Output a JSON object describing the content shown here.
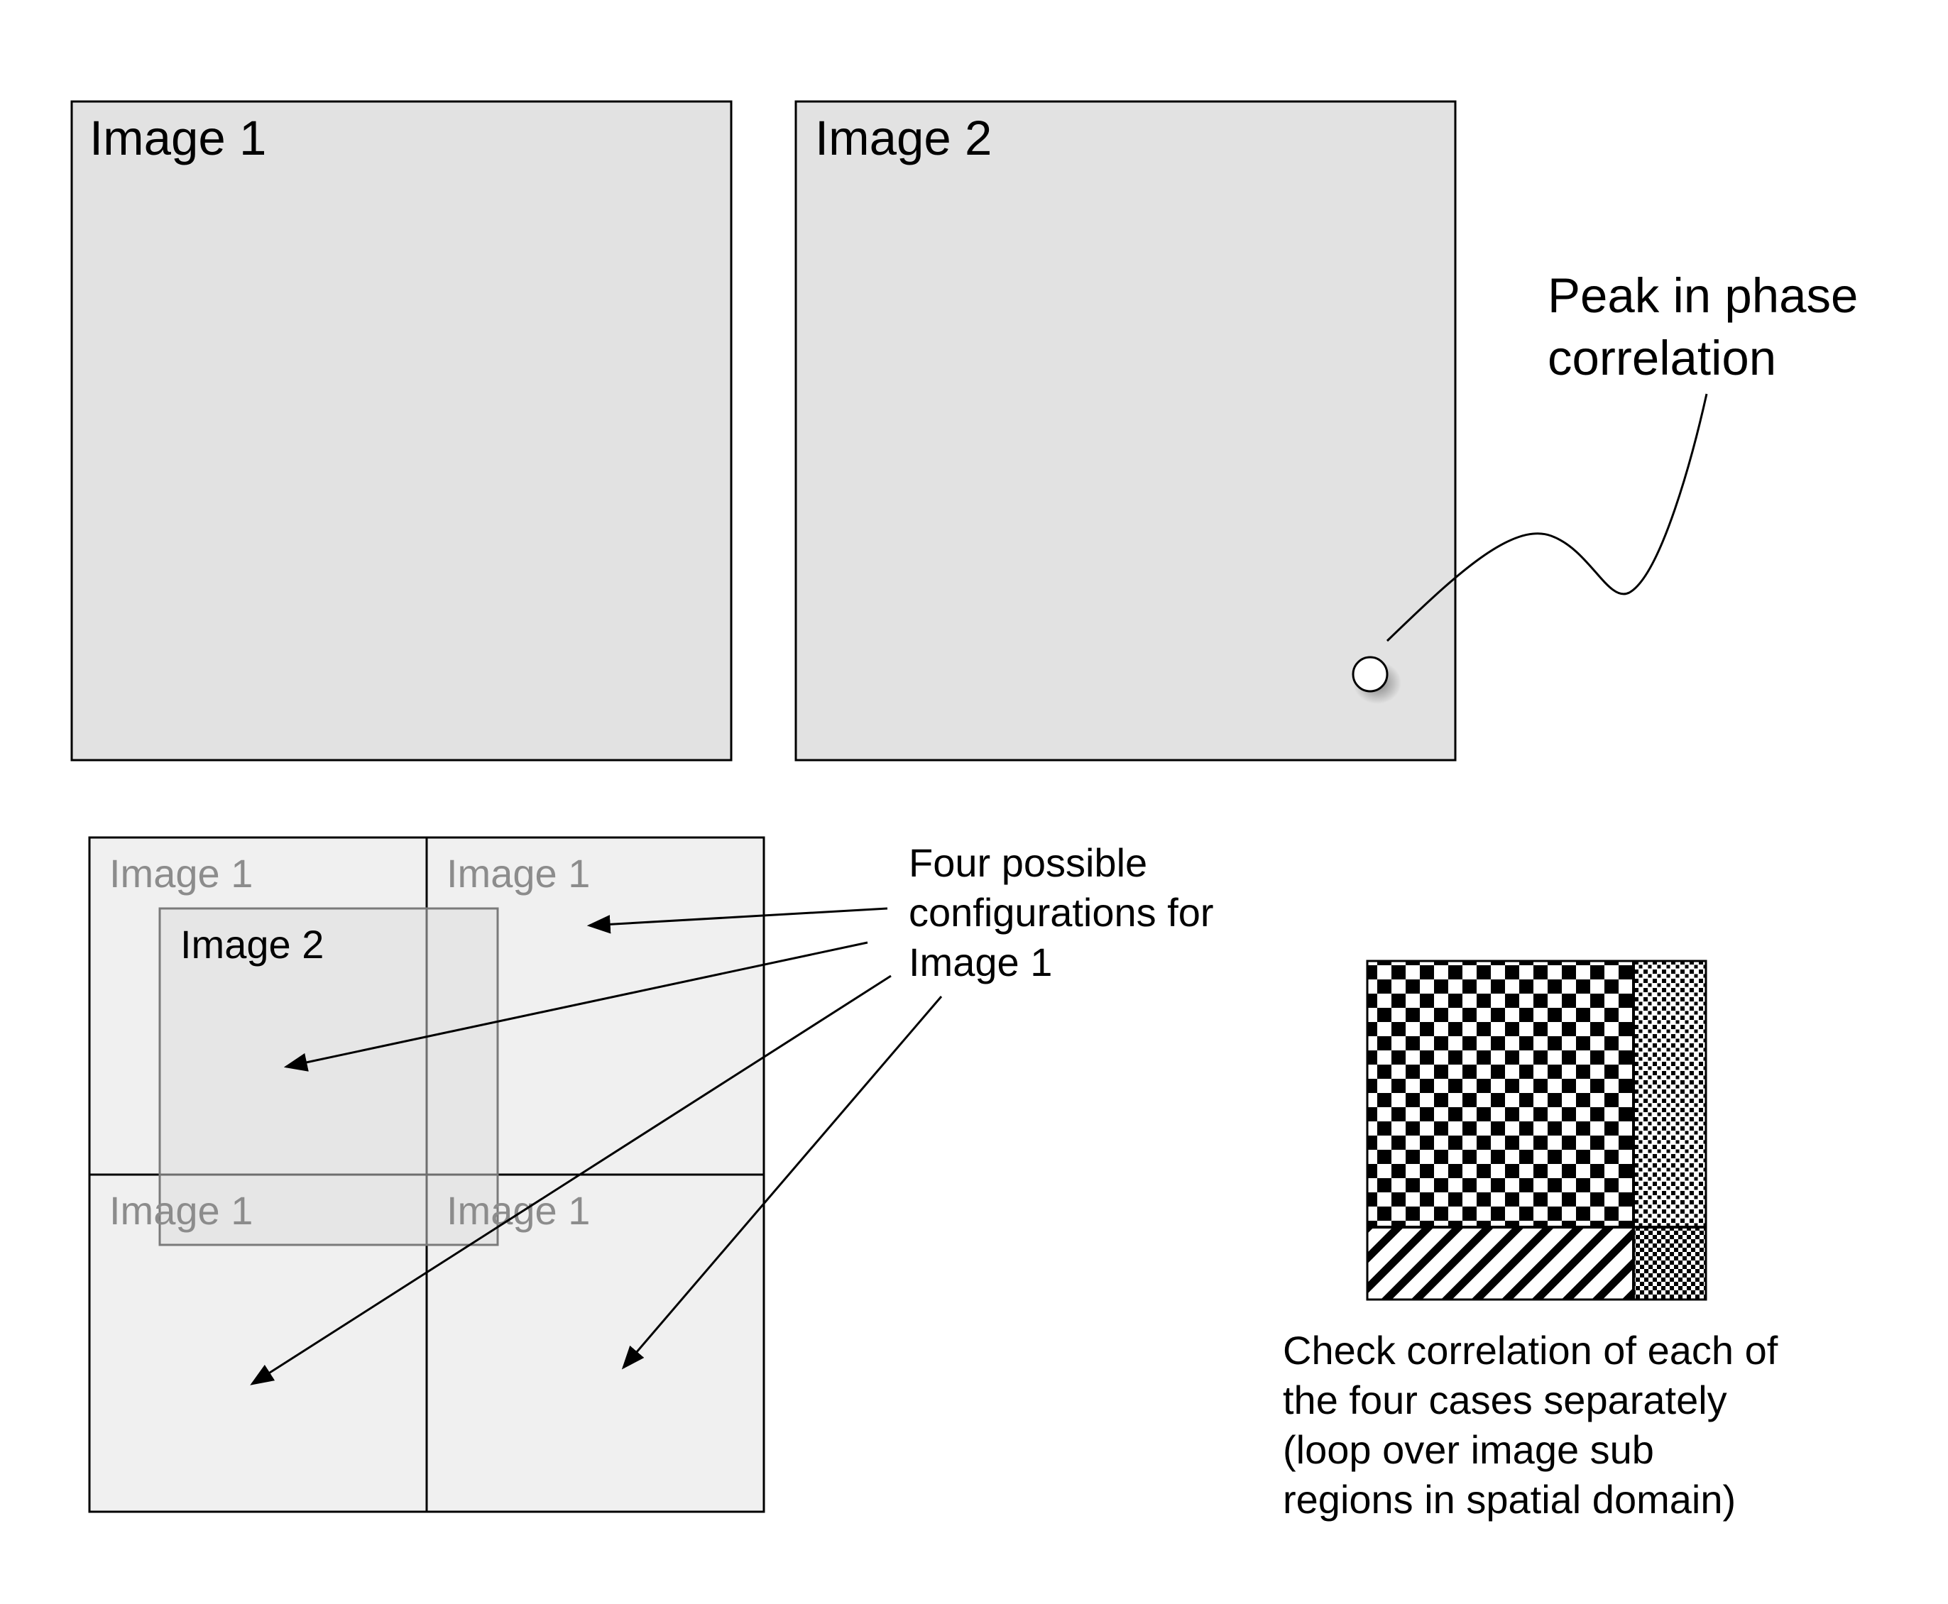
{
  "top": {
    "image1_label": "Image 1",
    "image2_label": "Image 2",
    "peak_label_line1": "Peak in phase",
    "peak_label_line2": "correlation"
  },
  "grid": {
    "quadrant_label_tl": "Image 1",
    "quadrant_label_tr": "Image 1",
    "quadrant_label_bl": "Image 1",
    "quadrant_label_br": "Image 1",
    "overlay_label": "Image 2"
  },
  "configs_note": {
    "line1": "Four possible",
    "line2": "configurations for",
    "line3": "Image 1"
  },
  "check_note": {
    "line1": "Check correlation of each of",
    "line2": "the four cases separately",
    "line3": "(loop over image sub",
    "line4": "regions in spatial domain)"
  },
  "colors": {
    "panel_fill": "#e2e2e2",
    "quadrant_fill": "#f0f0f0",
    "overlay_fill": "#e5e5e5",
    "stroke": "#000000",
    "faded_label": "#8c8c8c"
  }
}
